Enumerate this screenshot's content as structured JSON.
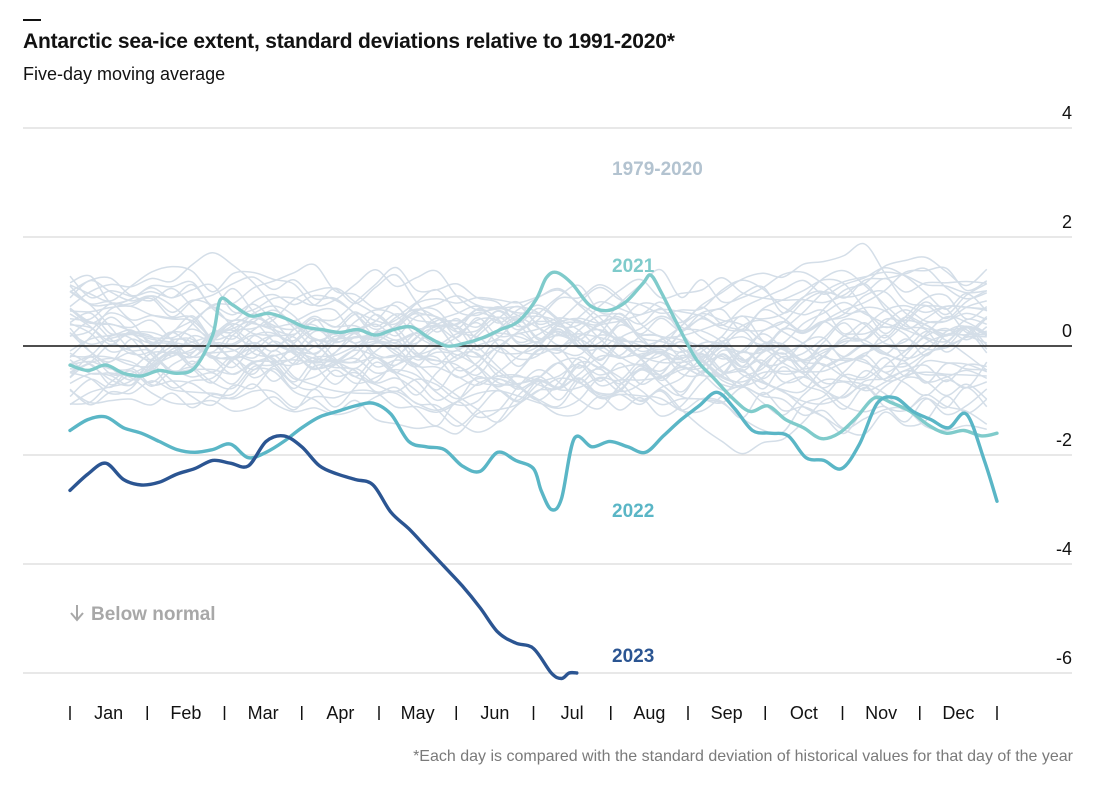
{
  "title": "Antarctic sea-ice extent, standard deviations relative to 1991-2020*",
  "subtitle": "Five-day moving average",
  "footnote": "*Each day is compared with the standard deviation of historical values for that day of the year",
  "colors": {
    "history": "#d4dee8",
    "y2021": "#7fcbcb",
    "y2022": "#5ab6c6",
    "y2023": "#2b5592",
    "axis": "#121212",
    "grid": "#d9d9d9",
    "annotation": "#a8a8a8",
    "historyLabel": "#b3c3d0"
  },
  "chart_data": {
    "type": "line",
    "ylim": [
      -6.5,
      4
    ],
    "yticks": [
      "4",
      "2",
      "0",
      "-2",
      "-4",
      "-6"
    ],
    "x_months": [
      "Jan",
      "Feb",
      "Mar",
      "Apr",
      "May",
      "Jun",
      "Jul",
      "Aug",
      "Sep",
      "Oct",
      "Nov",
      "Dec"
    ],
    "background_label": "1979-2020",
    "annotation": "Below normal",
    "x_unit": "day of year",
    "series": [
      {
        "name": "2021",
        "x": [
          1,
          8,
          15,
          22,
          29,
          36,
          43,
          50,
          57,
          60,
          65,
          72,
          79,
          86,
          93,
          100,
          107,
          114,
          121,
          128,
          135,
          142,
          149,
          156,
          163,
          170,
          177,
          184,
          188,
          192,
          198,
          205,
          212,
          219,
          226,
          229,
          233,
          240,
          247,
          254,
          261,
          268,
          275,
          282,
          289,
          296,
          303,
          310,
          317,
          324,
          331,
          338,
          345,
          352,
          359,
          365
        ],
        "y": [
          -0.35,
          -0.45,
          -0.35,
          -0.5,
          -0.55,
          -0.45,
          -0.5,
          -0.4,
          0.2,
          0.85,
          0.75,
          0.55,
          0.6,
          0.5,
          0.35,
          0.3,
          0.25,
          0.3,
          0.2,
          0.3,
          0.35,
          0.15,
          0.0,
          0.05,
          0.15,
          0.3,
          0.45,
          0.85,
          1.25,
          1.35,
          1.15,
          0.75,
          0.65,
          0.8,
          1.15,
          1.3,
          1.0,
          0.35,
          -0.25,
          -0.6,
          -0.95,
          -1.2,
          -1.1,
          -1.35,
          -1.5,
          -1.7,
          -1.6,
          -1.3,
          -0.95,
          -1.05,
          -1.2,
          -1.45,
          -1.6,
          -1.55,
          -1.65,
          -1.6
        ]
      },
      {
        "name": "2022",
        "x": [
          1,
          8,
          15,
          22,
          29,
          36,
          43,
          50,
          57,
          64,
          71,
          78,
          85,
          92,
          99,
          106,
          113,
          120,
          127,
          134,
          141,
          148,
          155,
          162,
          169,
          176,
          183,
          186,
          190,
          194,
          199,
          206,
          213,
          220,
          227,
          234,
          241,
          248,
          255,
          262,
          269,
          276,
          283,
          290,
          297,
          304,
          311,
          318,
          325,
          332,
          339,
          346,
          353,
          360,
          365
        ],
        "y": [
          -1.55,
          -1.35,
          -1.3,
          -1.5,
          -1.6,
          -1.75,
          -1.9,
          -1.95,
          -1.9,
          -1.8,
          -2.05,
          -1.95,
          -1.75,
          -1.5,
          -1.3,
          -1.2,
          -1.1,
          -1.05,
          -1.25,
          -1.75,
          -1.85,
          -1.9,
          -2.2,
          -2.3,
          -1.95,
          -2.1,
          -2.25,
          -2.65,
          -3.0,
          -2.8,
          -1.7,
          -1.85,
          -1.75,
          -1.85,
          -1.95,
          -1.65,
          -1.35,
          -1.1,
          -0.85,
          -1.15,
          -1.55,
          -1.6,
          -1.65,
          -2.05,
          -2.1,
          -2.25,
          -1.8,
          -1.05,
          -0.95,
          -1.2,
          -1.35,
          -1.5,
          -1.25,
          -2.1,
          -2.85
        ]
      },
      {
        "name": "2023",
        "x": [
          1,
          8,
          15,
          22,
          29,
          36,
          43,
          50,
          57,
          64,
          71,
          78,
          85,
          92,
          99,
          106,
          113,
          120,
          127,
          134,
          141,
          148,
          155,
          162,
          169,
          176,
          183,
          190,
          194,
          197,
          200
        ],
        "y": [
          -2.65,
          -2.35,
          -2.15,
          -2.45,
          -2.55,
          -2.5,
          -2.35,
          -2.25,
          -2.1,
          -2.15,
          -2.2,
          -1.75,
          -1.65,
          -1.85,
          -2.2,
          -2.35,
          -2.45,
          -2.55,
          -3.05,
          -3.35,
          -3.7,
          -4.05,
          -4.4,
          -4.8,
          -5.25,
          -5.45,
          -5.55,
          -6.0,
          -6.1,
          -6.0,
          -6.0
        ]
      }
    ]
  }
}
